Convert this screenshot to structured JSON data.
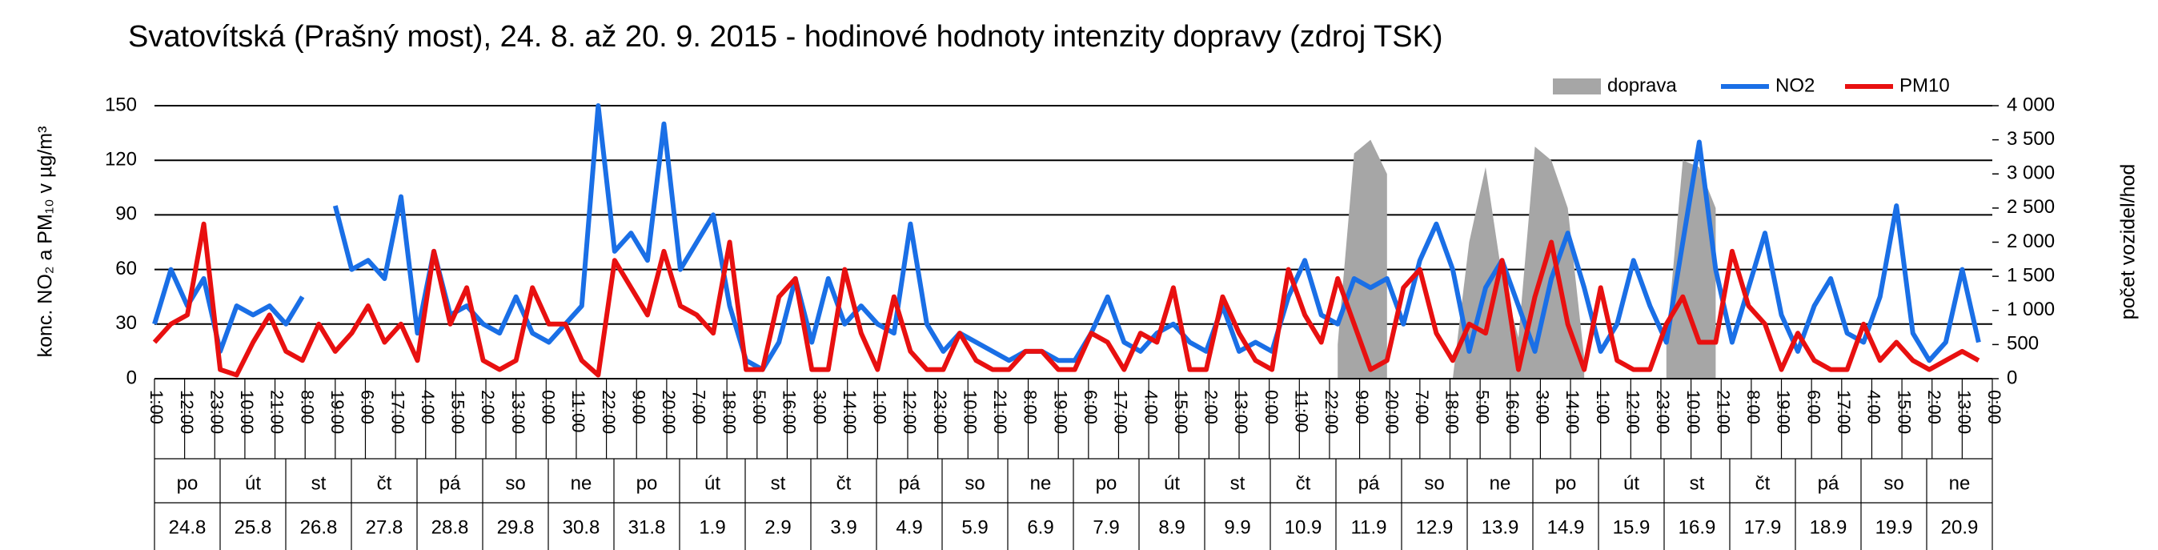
{
  "chart_data": {
    "type": "line",
    "title": "Svatovítská (Prašný most), 24. 8. až 20. 9. 2015 - hodinové hodnoty intenzity dopravy (zdroj TSK)",
    "ylabel": "konc. NO₂ a PM₁₀ v µg/m³",
    "y2label": "počet vozidel/hod",
    "xlim": [
      0,
      671
    ],
    "ylim": [
      0,
      150
    ],
    "yticks": [
      0,
      30,
      60,
      90,
      120,
      150
    ],
    "y2lim": [
      0,
      4000
    ],
    "y2ticks": [
      0,
      500,
      {
        "value": 1000,
        "label": "1 000"
      },
      {
        "value": 1500,
        "label": "1 500"
      },
      {
        "value": 2000,
        "label": "2 000"
      },
      {
        "value": 2500,
        "label": "2 500"
      },
      {
        "value": 3000,
        "label": "3 000"
      },
      {
        "value": 3500,
        "label": "3 500"
      },
      {
        "value": 4000,
        "label": "4 000"
      }
    ],
    "xticks": [
      {
        "value": 0,
        "label": "1:00"
      },
      {
        "value": 11,
        "label": "12:00"
      },
      {
        "value": 22,
        "label": "23:00"
      },
      {
        "value": 33,
        "label": "10:00"
      },
      {
        "value": 44,
        "label": "21:00"
      },
      {
        "value": 55,
        "label": "8:00"
      },
      {
        "value": 66,
        "label": "19:00"
      },
      {
        "value": 77,
        "label": "6:00"
      },
      {
        "value": 88,
        "label": "17:00"
      },
      {
        "value": 99,
        "label": "4:00"
      },
      {
        "value": 110,
        "label": "15:00"
      },
      {
        "value": 121,
        "label": "2:00"
      },
      {
        "value": 132,
        "label": "13:00"
      },
      {
        "value": 143,
        "label": "0:00"
      },
      {
        "value": 154,
        "label": "11:00"
      },
      {
        "value": 165,
        "label": "22:00"
      },
      {
        "value": 176,
        "label": "9:00"
      },
      {
        "value": 187,
        "label": "20:00"
      },
      {
        "value": 198,
        "label": "7:00"
      },
      {
        "value": 209,
        "label": "18:00"
      },
      {
        "value": 220,
        "label": "5:00"
      },
      {
        "value": 231,
        "label": "16:00"
      },
      {
        "value": 242,
        "label": "3:00"
      },
      {
        "value": 253,
        "label": "14:00"
      },
      {
        "value": 264,
        "label": "1:00"
      },
      {
        "value": 275,
        "label": "12:00"
      },
      {
        "value": 286,
        "label": "23:00"
      },
      {
        "value": 297,
        "label": "10:00"
      },
      {
        "value": 308,
        "label": "21:00"
      },
      {
        "value": 319,
        "label": "8:00"
      },
      {
        "value": 330,
        "label": "19:00"
      },
      {
        "value": 341,
        "label": "6:00"
      },
      {
        "value": 352,
        "label": "17:00"
      },
      {
        "value": 363,
        "label": "4:00"
      },
      {
        "value": 374,
        "label": "15:00"
      },
      {
        "value": 385,
        "label": "2:00"
      },
      {
        "value": 396,
        "label": "13:00"
      },
      {
        "value": 407,
        "label": "0:00"
      },
      {
        "value": 418,
        "label": "11:00"
      },
      {
        "value": 429,
        "label": "22:00"
      },
      {
        "value": 440,
        "label": "9:00"
      },
      {
        "value": 451,
        "label": "20:00"
      },
      {
        "value": 462,
        "label": "7:00"
      },
      {
        "value": 473,
        "label": "18:00"
      },
      {
        "value": 484,
        "label": "5:00"
      },
      {
        "value": 495,
        "label": "16:00"
      },
      {
        "value": 506,
        "label": "3:00"
      },
      {
        "value": 517,
        "label": "14:00"
      },
      {
        "value": 528,
        "label": "1:00"
      },
      {
        "value": 539,
        "label": "12:00"
      },
      {
        "value": 550,
        "label": "23:00"
      },
      {
        "value": 561,
        "label": "10:00"
      },
      {
        "value": 572,
        "label": "21:00"
      },
      {
        "value": 583,
        "label": "8:00"
      },
      {
        "value": 594,
        "label": "19:00"
      },
      {
        "value": 605,
        "label": "6:00"
      },
      {
        "value": 616,
        "label": "17:00"
      },
      {
        "value": 627,
        "label": "4:00"
      },
      {
        "value": 638,
        "label": "15:00"
      },
      {
        "value": 649,
        "label": "2:00"
      },
      {
        "value": 660,
        "label": "13:00"
      },
      {
        "value": 671,
        "label": "0:00"
      }
    ],
    "day_names": [
      "po",
      "út",
      "st",
      "čt",
      "pá",
      "so",
      "ne",
      "po",
      "út",
      "st",
      "čt",
      "pá",
      "so",
      "ne",
      "po",
      "út",
      "st",
      "čt",
      "pá",
      "so",
      "ne",
      "po",
      "út",
      "st",
      "čt",
      "pá",
      "so",
      "ne"
    ],
    "dates": [
      "24.8",
      "25.8",
      "26.8",
      "27.8",
      "28.8",
      "29.8",
      "30.8",
      "31.8",
      "1.9",
      "2.9",
      "3.9",
      "4.9",
      "5.9",
      "6.9",
      "7.9",
      "8.9",
      "9.9",
      "10.9",
      "11.9",
      "12.9",
      "13.9",
      "14.9",
      "15.9",
      "16.9",
      "17.9",
      "18.9",
      "19.9",
      "20.9"
    ],
    "grid": true,
    "x": [
      0,
      6,
      12,
      18,
      24,
      30,
      36,
      42,
      48,
      54,
      60,
      66,
      72,
      78,
      84,
      90,
      96,
      102,
      108,
      114,
      120,
      126,
      132,
      138,
      144,
      150,
      156,
      162,
      168,
      174,
      180,
      186,
      192,
      198,
      204,
      210,
      216,
      222,
      228,
      234,
      240,
      246,
      252,
      258,
      264,
      270,
      276,
      282,
      288,
      294,
      300,
      306,
      312,
      318,
      324,
      330,
      336,
      342,
      348,
      354,
      360,
      366,
      372,
      378,
      384,
      390,
      396,
      402,
      408,
      414,
      420,
      426,
      432,
      438,
      444,
      450,
      456,
      462,
      468,
      474,
      480,
      486,
      492,
      498,
      504,
      510,
      516,
      522,
      528,
      534,
      540,
      546,
      552,
      558,
      564,
      570,
      576,
      582,
      588,
      594,
      600,
      606,
      612,
      618,
      624,
      630,
      636,
      642,
      648,
      654,
      660,
      666
    ],
    "series": [
      {
        "name": "doprava",
        "color": "#a6a6a6",
        "axis": "y2",
        "style": "area",
        "values": [
          null,
          null,
          null,
          null,
          null,
          null,
          null,
          null,
          null,
          null,
          null,
          null,
          null,
          null,
          null,
          null,
          null,
          null,
          null,
          null,
          null,
          null,
          null,
          null,
          null,
          null,
          null,
          null,
          null,
          null,
          null,
          null,
          null,
          null,
          null,
          null,
          null,
          null,
          null,
          null,
          null,
          null,
          null,
          null,
          null,
          null,
          null,
          null,
          null,
          null,
          null,
          null,
          null,
          null,
          null,
          null,
          null,
          null,
          null,
          null,
          null,
          null,
          null,
          null,
          null,
          null,
          null,
          null,
          null,
          null,
          null,
          null,
          500,
          3300,
          3500,
          3000,
          null,
          null,
          null,
          0,
          2000,
          3100,
          1500,
          600,
          3400,
          3200,
          2500,
          300,
          null,
          null,
          null,
          null,
          500,
          3200,
          3100,
          2500,
          null,
          null,
          null,
          null,
          null,
          null,
          null,
          null,
          null,
          null,
          null,
          null,
          null,
          null,
          null,
          null
        ]
      },
      {
        "name": "NO2",
        "color": "#1a6fe6",
        "style": "line",
        "values": [
          30,
          60,
          40,
          55,
          15,
          40,
          35,
          40,
          30,
          45,
          null,
          95,
          60,
          65,
          55,
          100,
          25,
          70,
          35,
          40,
          30,
          25,
          45,
          25,
          20,
          30,
          40,
          150,
          70,
          80,
          65,
          140,
          60,
          75,
          90,
          40,
          10,
          5,
          20,
          55,
          20,
          55,
          30,
          40,
          30,
          25,
          85,
          30,
          15,
          25,
          20,
          15,
          10,
          15,
          15,
          10,
          10,
          25,
          45,
          20,
          15,
          25,
          30,
          20,
          15,
          40,
          15,
          20,
          15,
          45,
          65,
          35,
          30,
          55,
          50,
          55,
          30,
          65,
          85,
          60,
          15,
          50,
          65,
          40,
          15,
          55,
          80,
          50,
          15,
          30,
          65,
          40,
          20,
          75,
          130,
          60,
          20,
          50,
          80,
          35,
          15,
          40,
          55,
          25,
          20,
          45,
          95,
          25,
          10,
          20,
          60,
          20
        ]
      },
      {
        "name": "PM10",
        "color": "#e81010",
        "style": "line",
        "values": [
          20,
          30,
          35,
          85,
          5,
          2,
          20,
          35,
          15,
          10,
          30,
          15,
          25,
          40,
          20,
          30,
          10,
          70,
          30,
          50,
          10,
          5,
          10,
          50,
          30,
          30,
          10,
          2,
          65,
          50,
          35,
          70,
          40,
          35,
          25,
          75,
          5,
          5,
          45,
          55,
          5,
          5,
          60,
          25,
          5,
          45,
          15,
          5,
          5,
          25,
          10,
          5,
          5,
          15,
          15,
          5,
          5,
          25,
          20,
          5,
          25,
          20,
          50,
          5,
          5,
          45,
          25,
          10,
          5,
          60,
          35,
          20,
          55,
          30,
          5,
          10,
          50,
          60,
          25,
          10,
          30,
          25,
          65,
          5,
          45,
          75,
          30,
          5,
          50,
          10,
          5,
          5,
          30,
          45,
          20,
          20,
          70,
          40,
          30,
          5,
          25,
          10,
          5,
          5,
          30,
          10,
          20,
          10,
          5,
          10,
          15,
          10
        ]
      }
    ]
  }
}
